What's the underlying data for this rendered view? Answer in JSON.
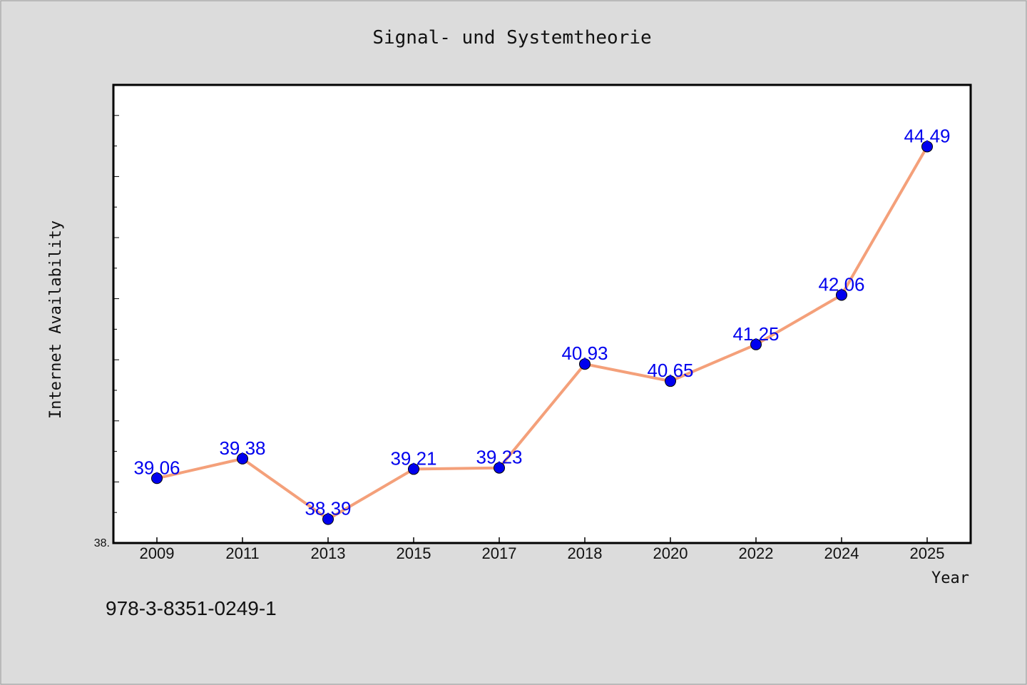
{
  "chart_data": {
    "type": "line",
    "title": "Signal- und Systemtheorie",
    "xlabel": "Year",
    "ylabel": "Internet Availability",
    "categories": [
      "2009",
      "2011",
      "2013",
      "2015",
      "2017",
      "2018",
      "2020",
      "2022",
      "2024",
      "2025"
    ],
    "series": [
      {
        "values": [
          39.06,
          39.38,
          38.39,
          39.21,
          39.23,
          40.93,
          40.65,
          41.25,
          42.06,
          44.49
        ],
        "data_labels": [
          "39.06",
          "39.38",
          "38.39",
          "39.21",
          "39.23",
          "40.93",
          "40.65",
          "41.25",
          "42.06",
          "44.49"
        ]
      }
    ],
    "ylim": [
      38.0,
      45.5
    ],
    "y_min_label": "38.",
    "grid": false,
    "legend": "none",
    "line_color": "#f4a07a",
    "marker_color": "#0000ee",
    "label_color": "#0000ee"
  },
  "footer": {
    "isbn": "978-3-8351-0249-1"
  }
}
